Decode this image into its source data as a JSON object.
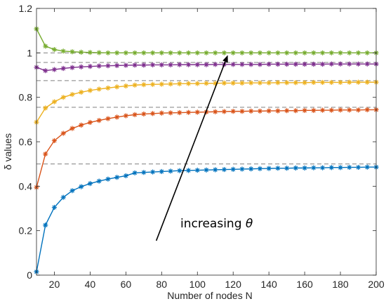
{
  "chart_data": {
    "type": "line",
    "xlabel": "Number of nodes N",
    "ylabel": "δ values",
    "xlim": [
      10,
      200
    ],
    "ylim": [
      0,
      1.2
    ],
    "x_ticks": [
      20,
      40,
      60,
      80,
      100,
      120,
      140,
      160,
      180,
      200
    ],
    "y_ticks": [
      0,
      0.2,
      0.4,
      0.6,
      0.8,
      1,
      1.2
    ],
    "x_tick_labels": [
      "20",
      "40",
      "60",
      "80",
      "100",
      "120",
      "140",
      "160",
      "180",
      "200"
    ],
    "y_tick_labels": [
      "0",
      "0.2",
      "0.4",
      "0.6",
      "0.8",
      "1",
      "1.2"
    ],
    "grid": false,
    "box": true,
    "x": [
      10,
      15,
      20,
      25,
      30,
      35,
      40,
      45,
      50,
      55,
      60,
      65,
      70,
      75,
      80,
      85,
      90,
      95,
      100,
      105,
      110,
      115,
      120,
      125,
      130,
      135,
      140,
      145,
      150,
      155,
      160,
      165,
      170,
      175,
      180,
      185,
      190,
      195,
      200
    ],
    "series": [
      {
        "color": "#0072BD",
        "values": [
          0.015,
          0.225,
          0.305,
          0.35,
          0.38,
          0.398,
          0.412,
          0.423,
          0.432,
          0.44,
          0.447,
          0.46,
          0.462,
          0.464,
          0.466,
          0.468,
          0.47,
          0.471,
          0.472,
          0.473,
          0.474,
          0.475,
          0.476,
          0.477,
          0.478,
          0.479,
          0.48,
          0.481,
          0.481,
          0.482,
          0.482,
          0.483,
          0.483,
          0.484,
          0.484,
          0.485,
          0.485,
          0.486,
          0.486
        ]
      },
      {
        "color": "#D95319",
        "values": [
          0.395,
          0.545,
          0.605,
          0.638,
          0.66,
          0.675,
          0.687,
          0.696,
          0.704,
          0.711,
          0.717,
          0.722,
          0.725,
          0.727,
          0.729,
          0.73,
          0.731,
          0.732,
          0.733,
          0.734,
          0.735,
          0.736,
          0.737,
          0.737,
          0.738,
          0.738,
          0.739,
          0.739,
          0.74,
          0.74,
          0.741,
          0.741,
          0.742,
          0.742,
          0.743,
          0.743,
          0.743,
          0.744,
          0.744
        ]
      },
      {
        "color": "#EDB120",
        "values": [
          0.688,
          0.752,
          0.78,
          0.8,
          0.813,
          0.823,
          0.831,
          0.837,
          0.842,
          0.847,
          0.851,
          0.855,
          0.857,
          0.858,
          0.859,
          0.86,
          0.861,
          0.862,
          0.862,
          0.863,
          0.863,
          0.864,
          0.864,
          0.864,
          0.865,
          0.865,
          0.865,
          0.866,
          0.866,
          0.866,
          0.866,
          0.867,
          0.867,
          0.867,
          0.867,
          0.868,
          0.868,
          0.868,
          0.868
        ]
      },
      {
        "color": "#7E2F8E",
        "values": [
          0.935,
          0.92,
          0.925,
          0.93,
          0.934,
          0.937,
          0.939,
          0.941,
          0.942,
          0.943,
          0.944,
          0.945,
          0.945,
          0.946,
          0.946,
          0.946,
          0.947,
          0.947,
          0.947,
          0.947,
          0.948,
          0.948,
          0.948,
          0.948,
          0.948,
          0.948,
          0.949,
          0.949,
          0.949,
          0.949,
          0.949,
          0.949,
          0.949,
          0.95,
          0.95,
          0.95,
          0.95,
          0.95,
          0.95
        ]
      },
      {
        "color": "#77AC30",
        "values": [
          1.108,
          1.03,
          1.015,
          1.008,
          1.005,
          1.003,
          1.002,
          1.001,
          1.0,
          1.0,
          1.0,
          1.0,
          1.0,
          1.0,
          1.0,
          1.0,
          1.0,
          1.0,
          1.0,
          1.0,
          1.0,
          1.0,
          1.0,
          1.0,
          1.0,
          1.0,
          1.0,
          1.0,
          1.0,
          1.0,
          1.0,
          1.0,
          1.0,
          1.0,
          1.0,
          1.0,
          1.0,
          1.0,
          1.0
        ]
      }
    ],
    "reference_lines": [
      0.5,
      0.755,
      0.875,
      0.957,
      1.0
    ],
    "reference_line_color": "#808080",
    "annotations": [
      {
        "text": "increasing ",
        "symbol": "θ",
        "arrow_from": [
          77,
          0.155
        ],
        "arrow_to": [
          117,
          0.99
        ]
      }
    ]
  }
}
